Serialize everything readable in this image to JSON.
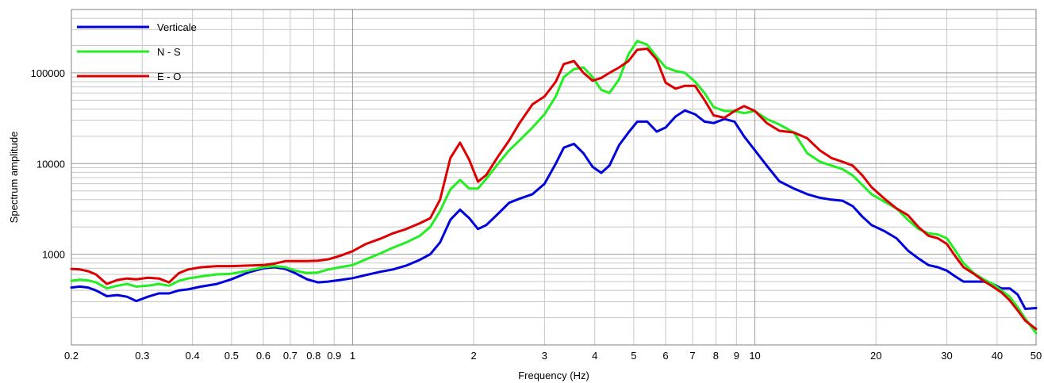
{
  "chart_data": {
    "type": "line",
    "title": "",
    "xlabel": "Frequency (Hz)",
    "ylabel": "Spectrum amplitude",
    "xscale": "log",
    "yscale": "log",
    "xlim": [
      0.2,
      50
    ],
    "ylim": [
      100,
      500000
    ],
    "grid": true,
    "legend_position": "top-left",
    "x_ticks": [
      {
        "value": 0.2,
        "label": "0.2"
      },
      {
        "value": 0.3,
        "label": "0.3"
      },
      {
        "value": 0.4,
        "label": "0.4"
      },
      {
        "value": 0.5,
        "label": "0.5"
      },
      {
        "value": 0.6,
        "label": "0.6"
      },
      {
        "value": 0.7,
        "label": "0.7"
      },
      {
        "value": 0.8,
        "label": "0.8"
      },
      {
        "value": 0.9,
        "label": "0.9"
      },
      {
        "value": 1,
        "label": "1"
      },
      {
        "value": 2,
        "label": "2"
      },
      {
        "value": 3,
        "label": "3"
      },
      {
        "value": 4,
        "label": "4"
      },
      {
        "value": 5,
        "label": "5"
      },
      {
        "value": 6,
        "label": "6"
      },
      {
        "value": 7,
        "label": "7"
      },
      {
        "value": 8,
        "label": "8"
      },
      {
        "value": 9,
        "label": "9"
      },
      {
        "value": 10,
        "label": "10"
      },
      {
        "value": 20,
        "label": "20"
      },
      {
        "value": 30,
        "label": "30"
      },
      {
        "value": 40,
        "label": "40"
      },
      {
        "value": 50,
        "label": "50"
      }
    ],
    "y_ticks": [
      {
        "value": 1000,
        "label": "1000"
      },
      {
        "value": 10000,
        "label": "10000"
      },
      {
        "value": 100000,
        "label": "100000"
      }
    ],
    "series": [
      {
        "name": "Verticale",
        "color": "#0000dd",
        "points": [
          [
            0.2,
            430
          ],
          [
            0.21,
            440
          ],
          [
            0.22,
            430
          ],
          [
            0.23,
            400
          ],
          [
            0.245,
            345
          ],
          [
            0.26,
            355
          ],
          [
            0.275,
            340
          ],
          [
            0.29,
            305
          ],
          [
            0.31,
            340
          ],
          [
            0.33,
            370
          ],
          [
            0.35,
            370
          ],
          [
            0.37,
            400
          ],
          [
            0.39,
            410
          ],
          [
            0.42,
            440
          ],
          [
            0.46,
            470
          ],
          [
            0.5,
            530
          ],
          [
            0.55,
            630
          ],
          [
            0.6,
            700
          ],
          [
            0.64,
            720
          ],
          [
            0.68,
            690
          ],
          [
            0.72,
            620
          ],
          [
            0.77,
            530
          ],
          [
            0.82,
            490
          ],
          [
            0.87,
            500
          ],
          [
            0.93,
            520
          ],
          [
            1.0,
            545
          ],
          [
            1.08,
            590
          ],
          [
            1.17,
            640
          ],
          [
            1.26,
            680
          ],
          [
            1.36,
            750
          ],
          [
            1.47,
            870
          ],
          [
            1.56,
            1000
          ],
          [
            1.65,
            1350
          ],
          [
            1.75,
            2400
          ],
          [
            1.85,
            3100
          ],
          [
            1.95,
            2500
          ],
          [
            2.05,
            1900
          ],
          [
            2.15,
            2100
          ],
          [
            2.3,
            2800
          ],
          [
            2.45,
            3700
          ],
          [
            2.6,
            4100
          ],
          [
            2.8,
            4600
          ],
          [
            3.0,
            6000
          ],
          [
            3.2,
            10000
          ],
          [
            3.35,
            15000
          ],
          [
            3.55,
            16500
          ],
          [
            3.75,
            13000
          ],
          [
            3.95,
            9200
          ],
          [
            4.15,
            7900
          ],
          [
            4.35,
            9500
          ],
          [
            4.6,
            16000
          ],
          [
            4.85,
            22000
          ],
          [
            5.1,
            29000
          ],
          [
            5.4,
            29000
          ],
          [
            5.7,
            22500
          ],
          [
            6.0,
            25000
          ],
          [
            6.35,
            33000
          ],
          [
            6.7,
            38500
          ],
          [
            7.1,
            35000
          ],
          [
            7.5,
            29000
          ],
          [
            7.9,
            28000
          ],
          [
            8.4,
            31000
          ],
          [
            8.9,
            29000
          ],
          [
            9.4,
            20000
          ],
          [
            10.0,
            14000
          ],
          [
            10.7,
            9500
          ],
          [
            11.5,
            6400
          ],
          [
            12.5,
            5300
          ],
          [
            13.5,
            4600
          ],
          [
            14.5,
            4200
          ],
          [
            15.5,
            4000
          ],
          [
            16.5,
            3900
          ],
          [
            17.5,
            3400
          ],
          [
            18.5,
            2600
          ],
          [
            19.5,
            2100
          ],
          [
            21,
            1800
          ],
          [
            22.5,
            1500
          ],
          [
            24,
            1100
          ],
          [
            25.5,
            900
          ],
          [
            27,
            760
          ],
          [
            28.5,
            720
          ],
          [
            30,
            660
          ],
          [
            31.5,
            570
          ],
          [
            33,
            500
          ],
          [
            35,
            500
          ],
          [
            37,
            500
          ],
          [
            39,
            470
          ],
          [
            41,
            420
          ],
          [
            43,
            420
          ],
          [
            45,
            360
          ],
          [
            47,
            250
          ],
          [
            50,
            255
          ]
        ]
      },
      {
        "name": "N - S",
        "color": "#22ee22",
        "points": [
          [
            0.2,
            510
          ],
          [
            0.21,
            525
          ],
          [
            0.22,
            515
          ],
          [
            0.23,
            490
          ],
          [
            0.245,
            420
          ],
          [
            0.26,
            450
          ],
          [
            0.275,
            470
          ],
          [
            0.29,
            440
          ],
          [
            0.31,
            450
          ],
          [
            0.33,
            470
          ],
          [
            0.35,
            450
          ],
          [
            0.37,
            510
          ],
          [
            0.39,
            540
          ],
          [
            0.42,
            570
          ],
          [
            0.46,
            600
          ],
          [
            0.5,
            610
          ],
          [
            0.55,
            660
          ],
          [
            0.6,
            720
          ],
          [
            0.64,
            740
          ],
          [
            0.68,
            720
          ],
          [
            0.72,
            660
          ],
          [
            0.77,
            620
          ],
          [
            0.82,
            630
          ],
          [
            0.87,
            680
          ],
          [
            0.93,
            720
          ],
          [
            1.0,
            760
          ],
          [
            1.08,
            880
          ],
          [
            1.17,
            1020
          ],
          [
            1.26,
            1180
          ],
          [
            1.36,
            1350
          ],
          [
            1.47,
            1600
          ],
          [
            1.56,
            2000
          ],
          [
            1.65,
            3000
          ],
          [
            1.75,
            5200
          ],
          [
            1.85,
            6600
          ],
          [
            1.95,
            5300
          ],
          [
            2.05,
            5300
          ],
          [
            2.15,
            6800
          ],
          [
            2.3,
            10000
          ],
          [
            2.45,
            14000
          ],
          [
            2.6,
            18000
          ],
          [
            2.8,
            25000
          ],
          [
            3.0,
            35000
          ],
          [
            3.2,
            55000
          ],
          [
            3.35,
            90000
          ],
          [
            3.55,
            110000
          ],
          [
            3.75,
            115000
          ],
          [
            3.95,
            90000
          ],
          [
            4.15,
            65000
          ],
          [
            4.35,
            60000
          ],
          [
            4.6,
            85000
          ],
          [
            4.85,
            160000
          ],
          [
            5.1,
            225000
          ],
          [
            5.4,
            205000
          ],
          [
            5.7,
            150000
          ],
          [
            6.0,
            115000
          ],
          [
            6.35,
            105000
          ],
          [
            6.7,
            100000
          ],
          [
            7.1,
            80000
          ],
          [
            7.5,
            60000
          ],
          [
            7.9,
            42000
          ],
          [
            8.4,
            38000
          ],
          [
            8.9,
            38000
          ],
          [
            9.4,
            36000
          ],
          [
            10.0,
            38000
          ],
          [
            10.7,
            31000
          ],
          [
            11.5,
            27000
          ],
          [
            12.5,
            22000
          ],
          [
            13.5,
            13000
          ],
          [
            14.5,
            10500
          ],
          [
            15.5,
            9500
          ],
          [
            16.5,
            8700
          ],
          [
            17.5,
            7400
          ],
          [
            18.5,
            5800
          ],
          [
            19.5,
            4600
          ],
          [
            21,
            3800
          ],
          [
            22.5,
            3200
          ],
          [
            24,
            2400
          ],
          [
            25.5,
            1900
          ],
          [
            27,
            1700
          ],
          [
            28.5,
            1650
          ],
          [
            30,
            1500
          ],
          [
            31.5,
            1100
          ],
          [
            33,
            800
          ],
          [
            35,
            620
          ],
          [
            37,
            530
          ],
          [
            39,
            470
          ],
          [
            41,
            400
          ],
          [
            43,
            340
          ],
          [
            45,
            260
          ],
          [
            47,
            195
          ],
          [
            50,
            135
          ]
        ]
      },
      {
        "name": "E - O",
        "color": "#dd0000",
        "points": [
          [
            0.2,
            690
          ],
          [
            0.21,
            680
          ],
          [
            0.22,
            650
          ],
          [
            0.23,
            600
          ],
          [
            0.245,
            470
          ],
          [
            0.26,
            520
          ],
          [
            0.275,
            540
          ],
          [
            0.29,
            530
          ],
          [
            0.31,
            550
          ],
          [
            0.33,
            540
          ],
          [
            0.35,
            490
          ],
          [
            0.37,
            620
          ],
          [
            0.39,
            680
          ],
          [
            0.42,
            720
          ],
          [
            0.46,
            740
          ],
          [
            0.5,
            740
          ],
          [
            0.55,
            750
          ],
          [
            0.6,
            760
          ],
          [
            0.64,
            790
          ],
          [
            0.68,
            840
          ],
          [
            0.72,
            840
          ],
          [
            0.77,
            840
          ],
          [
            0.82,
            850
          ],
          [
            0.87,
            880
          ],
          [
            0.93,
            960
          ],
          [
            1.0,
            1080
          ],
          [
            1.08,
            1300
          ],
          [
            1.17,
            1480
          ],
          [
            1.26,
            1700
          ],
          [
            1.36,
            1900
          ],
          [
            1.47,
            2200
          ],
          [
            1.56,
            2500
          ],
          [
            1.65,
            4000
          ],
          [
            1.75,
            11500
          ],
          [
            1.85,
            17000
          ],
          [
            1.95,
            11000
          ],
          [
            2.05,
            6300
          ],
          [
            2.15,
            7500
          ],
          [
            2.3,
            12000
          ],
          [
            2.45,
            18000
          ],
          [
            2.6,
            28000
          ],
          [
            2.8,
            45000
          ],
          [
            3.0,
            55000
          ],
          [
            3.2,
            80000
          ],
          [
            3.35,
            125000
          ],
          [
            3.55,
            135000
          ],
          [
            3.75,
            100000
          ],
          [
            3.95,
            82000
          ],
          [
            4.15,
            88000
          ],
          [
            4.35,
            100000
          ],
          [
            4.6,
            115000
          ],
          [
            4.85,
            135000
          ],
          [
            5.1,
            180000
          ],
          [
            5.4,
            185000
          ],
          [
            5.7,
            140000
          ],
          [
            6.0,
            78000
          ],
          [
            6.35,
            67000
          ],
          [
            6.7,
            72000
          ],
          [
            7.1,
            72000
          ],
          [
            7.5,
            50000
          ],
          [
            7.9,
            34000
          ],
          [
            8.4,
            32000
          ],
          [
            8.9,
            38000
          ],
          [
            9.4,
            43000
          ],
          [
            10.0,
            38000
          ],
          [
            10.7,
            28000
          ],
          [
            11.5,
            23000
          ],
          [
            12.5,
            22000
          ],
          [
            13.5,
            19000
          ],
          [
            14.5,
            14000
          ],
          [
            15.5,
            11500
          ],
          [
            16.5,
            10500
          ],
          [
            17.5,
            9500
          ],
          [
            18.5,
            7400
          ],
          [
            19.5,
            5500
          ],
          [
            21,
            4100
          ],
          [
            22.5,
            3200
          ],
          [
            24,
            2700
          ],
          [
            25.5,
            2000
          ],
          [
            27,
            1600
          ],
          [
            28.5,
            1500
          ],
          [
            30,
            1300
          ],
          [
            31.5,
            950
          ],
          [
            33,
            720
          ],
          [
            35,
            610
          ],
          [
            37,
            510
          ],
          [
            39,
            440
          ],
          [
            41,
            380
          ],
          [
            43,
            310
          ],
          [
            45,
            240
          ],
          [
            47,
            185
          ],
          [
            50,
            150
          ]
        ]
      }
    ]
  }
}
